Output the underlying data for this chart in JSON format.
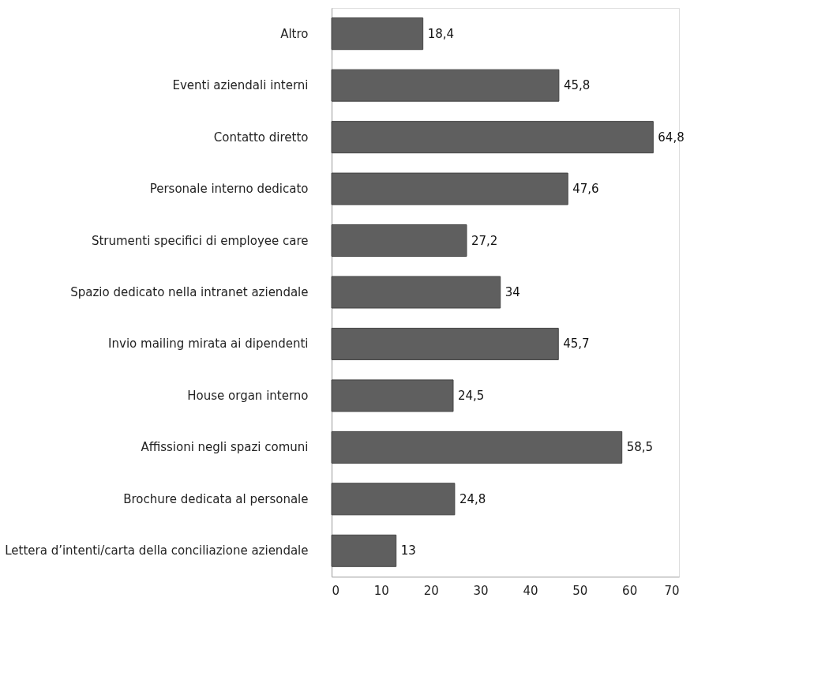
{
  "chart_data": {
    "type": "bar",
    "orientation": "horizontal",
    "categories": [
      "Altro",
      "Eventi aziendali interni",
      "Contatto diretto",
      "Personale interno dedicato",
      "Strumenti specifici di employee care",
      "Spazio dedicato nella intranet aziendale",
      "Invio mailing mirata ai dipendenti",
      "House organ interno",
      "Affissioni negli spazi comuni",
      "Brochure dedicata al personale",
      "Lettera d’intenti/carta della conciliazione aziendale"
    ],
    "values": [
      18.4,
      45.8,
      64.8,
      47.6,
      27.2,
      34,
      45.7,
      24.5,
      58.5,
      24.8,
      13
    ],
    "value_labels": [
      "18,4",
      "45,8",
      "64,8",
      "47,6",
      "27,2",
      "34",
      "45,7",
      "24,5",
      "58,5",
      "24,8",
      "13"
    ],
    "color": "#5f5f5f",
    "xlim": [
      0,
      70
    ],
    "xticks": [
      0,
      10,
      20,
      30,
      40,
      50,
      60,
      70
    ],
    "grid": false
  }
}
